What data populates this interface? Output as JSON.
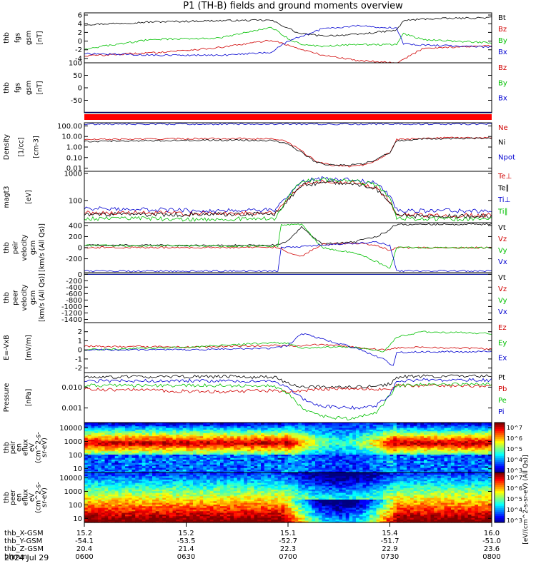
{
  "title": "P1 (TH-B) fields and ground moments overview",
  "date_label": "2024 Jul 29",
  "chart_data": [
    {
      "type": "line",
      "ylabel": [
        "thb",
        "fgs",
        "gsm",
        "[nT]"
      ],
      "yticks": [
        6,
        4,
        2,
        0,
        -2,
        -4
      ],
      "ylim": [
        -5,
        6.5
      ],
      "series": [
        {
          "name": "Bt",
          "color": "#000000",
          "x": [
            0,
            20,
            40,
            55,
            60,
            63,
            70,
            80,
            92,
            94,
            100,
            120
          ],
          "y": [
            3.8,
            4.4,
            4.7,
            4.8,
            3.0,
            1.8,
            1.2,
            1.5,
            2.5,
            4.7,
            5.1,
            5.4
          ]
        },
        {
          "name": "Bz",
          "color": "#d00000",
          "x": [
            0,
            20,
            40,
            55,
            58,
            62,
            70,
            80,
            92,
            94,
            100,
            120
          ],
          "y": [
            -3.4,
            -2.7,
            -1.5,
            0.2,
            -0.4,
            -1.5,
            -3.2,
            -4.4,
            -5.0,
            -4.2,
            -1.6,
            -1.1
          ]
        },
        {
          "name": "By",
          "color": "#00c000",
          "x": [
            0,
            20,
            40,
            55,
            60,
            64,
            70,
            80,
            92,
            94,
            100,
            120
          ],
          "y": [
            -1.8,
            0.4,
            0.7,
            3.2,
            0.6,
            -0.8,
            -1.2,
            -0.8,
            -0.8,
            1.7,
            0.3,
            -0.4
          ]
        },
        {
          "name": "Bx",
          "color": "#0000d0",
          "x": [
            0,
            20,
            40,
            55,
            60,
            64,
            70,
            80,
            92,
            94,
            100,
            120
          ],
          "y": [
            -2.9,
            -3.2,
            -3.3,
            -2.6,
            0.0,
            1.1,
            2.8,
            3.5,
            3.0,
            -0.6,
            -0.9,
            -1.4
          ]
        }
      ]
    },
    {
      "type": "line",
      "ylabel": [
        "thb",
        "fgs",
        "gsm",
        "[nT]"
      ],
      "yticks": [
        100,
        50,
        0,
        -50
      ],
      "ylim": [
        -100,
        100
      ],
      "series": [
        {
          "name": "Bz",
          "color": "#d00000",
          "x": [
            0,
            120
          ],
          "y": [
            -98,
            -98
          ]
        },
        {
          "name": "By",
          "color": "#00c000",
          "x": [
            0,
            120
          ],
          "y": [
            -98,
            -98
          ]
        },
        {
          "name": "Bx",
          "color": "#0000d0",
          "x": [
            0,
            120
          ],
          "y": [
            -98,
            -98
          ]
        }
      ]
    },
    {
      "type": "line",
      "scale": "log",
      "ylabel": [
        "Density",
        "[1/cc]",
        "[cm-3]"
      ],
      "yticks": [
        "100.00",
        "10.00",
        "1.00",
        "0.10",
        "0.01"
      ],
      "ylim": [
        0.005,
        200
      ],
      "series": [
        {
          "name": "Ne",
          "color": "#d00000",
          "x": [
            0,
            10,
            40,
            56,
            60,
            64,
            68,
            72,
            78,
            82,
            85,
            90,
            92,
            100,
            120
          ],
          "y": [
            5.0,
            5.5,
            6.5,
            6.0,
            3.0,
            0.4,
            0.05,
            0.02,
            0.015,
            0.02,
            0.04,
            0.3,
            5.0,
            7.0,
            8.0
          ]
        },
        {
          "name": "Ni",
          "color": "#000000",
          "x": [
            0,
            10,
            40,
            56,
            60,
            64,
            68,
            72,
            78,
            82,
            85,
            90,
            92,
            100,
            120
          ],
          "y": [
            3.5,
            3.8,
            4.5,
            4.0,
            2.0,
            0.3,
            0.04,
            0.02,
            0.02,
            0.025,
            0.05,
            0.3,
            4.0,
            6.0,
            7.0
          ]
        },
        {
          "name": "Npot",
          "color": "#0000d0",
          "x": [
            0,
            120
          ],
          "y": [
            150,
            150
          ]
        }
      ]
    },
    {
      "type": "line",
      "scale": "log",
      "ylabel": [
        "magt3",
        "[eV]"
      ],
      "yticks": [
        "1000",
        "100"
      ],
      "ylim": [
        15,
        1200
      ],
      "series": [
        {
          "name": "Te⊥",
          "color": "#d00000",
          "x": [
            0,
            40,
            56,
            60,
            64,
            70,
            80,
            86,
            90,
            92,
            100,
            120
          ],
          "y": [
            35,
            33,
            36,
            110,
            400,
            520,
            450,
            300,
            90,
            30,
            28,
            28
          ]
        },
        {
          "name": "Te∥",
          "color": "#000000",
          "x": [
            0,
            40,
            56,
            60,
            64,
            70,
            80,
            86,
            90,
            92,
            100,
            120
          ],
          "y": [
            30,
            30,
            32,
            100,
            350,
            470,
            420,
            280,
            80,
            28,
            26,
            26
          ]
        },
        {
          "name": "Ti⊥",
          "color": "#0000d0",
          "x": [
            0,
            40,
            56,
            60,
            64,
            70,
            80,
            86,
            90,
            92,
            100,
            120
          ],
          "y": [
            50,
            42,
            45,
            160,
            520,
            640,
            560,
            430,
            150,
            45,
            42,
            40
          ]
        },
        {
          "name": "Ti∥",
          "color": "#00c000",
          "x": [
            0,
            40,
            56,
            60,
            64,
            70,
            80,
            86,
            90,
            92,
            100,
            120
          ],
          "y": [
            22,
            20,
            22,
            130,
            500,
            600,
            520,
            380,
            120,
            22,
            21,
            20
          ]
        }
      ]
    },
    {
      "type": "line",
      "ylabel": [
        "thb",
        "peir",
        "velocity",
        "gsm",
        "[km/s (All Qs)]"
      ],
      "yticks": [
        400,
        200,
        0,
        -200
      ],
      "ylim": [
        -450,
        450
      ],
      "series": [
        {
          "name": "Vt",
          "color": "#000000",
          "x": [
            0,
            40,
            57,
            60,
            64,
            70,
            80,
            86,
            90,
            91,
            92,
            100,
            120
          ],
          "y": [
            45,
            40,
            50,
            120,
            380,
            60,
            110,
            200,
            320,
            400,
            420,
            420,
            420
          ]
        },
        {
          "name": "Vz",
          "color": "#d00000",
          "x": [
            0,
            40,
            57,
            60,
            64,
            70,
            80,
            86,
            90,
            92,
            100,
            120
          ],
          "y": [
            5,
            0,
            10,
            -80,
            -150,
            60,
            80,
            50,
            -50,
            0,
            0,
            0
          ]
        },
        {
          "name": "Vy",
          "color": "#00c000",
          "x": [
            0,
            40,
            57,
            58,
            64,
            70,
            80,
            86,
            90,
            92,
            100,
            120
          ],
          "y": [
            40,
            30,
            30,
            420,
            420,
            0,
            -100,
            -250,
            -380,
            0,
            0,
            0
          ]
        },
        {
          "name": "Vx",
          "color": "#0000d0",
          "x": [
            0,
            40,
            57,
            58,
            64,
            70,
            80,
            86,
            90,
            92,
            100,
            120
          ],
          "y": [
            -420,
            -420,
            -420,
            0,
            20,
            50,
            80,
            100,
            40,
            -420,
            -420,
            -420
          ]
        }
      ]
    },
    {
      "type": "line",
      "ylabel": [
        "thb",
        "peer",
        "velocity",
        "gsm",
        "[km/s (All Qs)]"
      ],
      "yticks": [
        0,
        -200,
        -400,
        -600,
        -800,
        -1000,
        -1200,
        -1400
      ],
      "ylim": [
        -1500,
        50
      ],
      "series": [
        {
          "name": "Vt",
          "color": "#000000",
          "x": [
            0,
            120
          ],
          "y": [
            0,
            0
          ]
        },
        {
          "name": "Vz",
          "color": "#d00000",
          "x": [
            0,
            120
          ],
          "y": [
            0,
            0
          ]
        },
        {
          "name": "Vy",
          "color": "#00c000",
          "x": [
            0,
            120
          ],
          "y": [
            0,
            0
          ]
        },
        {
          "name": "Vx",
          "color": "#0000d0",
          "x": [
            0,
            120
          ],
          "y": [
            0,
            0
          ]
        }
      ]
    },
    {
      "type": "line",
      "ylabel": [
        "E=-VxB",
        "[mV/m]"
      ],
      "yticks": [
        2,
        1,
        0,
        -1,
        -2
      ],
      "ylim": [
        -2.5,
        3.0
      ],
      "series": [
        {
          "name": "Ez",
          "color": "#d00000",
          "x": [
            0,
            30,
            56,
            62,
            70,
            80,
            88,
            92,
            100,
            120
          ],
          "y": [
            0.4,
            0.3,
            0.5,
            0.4,
            0.6,
            0.3,
            0.0,
            0.2,
            0.3,
            0.1
          ]
        },
        {
          "name": "Ey",
          "color": "#00c000",
          "x": [
            0,
            30,
            56,
            60,
            64,
            70,
            80,
            88,
            92,
            100,
            120
          ],
          "y": [
            0.0,
            0.3,
            0.8,
            0.7,
            0.2,
            0.3,
            0.3,
            -0.2,
            1.4,
            2.0,
            1.8
          ]
        },
        {
          "name": "Ex",
          "color": "#0000d0",
          "x": [
            0,
            30,
            56,
            60,
            64,
            70,
            80,
            88,
            91,
            92,
            100,
            120
          ],
          "y": [
            0.0,
            0.0,
            0.2,
            0.5,
            1.8,
            1.2,
            0.2,
            -1.0,
            -1.8,
            -0.3,
            -0.2,
            -0.2
          ]
        }
      ]
    },
    {
      "type": "line",
      "scale": "log",
      "ylabel": [
        "Pressure",
        "[nPa]"
      ],
      "yticks": [
        "0.010",
        "0.001"
      ],
      "ylim": [
        0.0002,
        0.05
      ],
      "series": [
        {
          "name": "Pt",
          "color": "#000000",
          "x": [
            0,
            40,
            56,
            60,
            64,
            70,
            80,
            86,
            90,
            92,
            100,
            120
          ],
          "y": [
            0.03,
            0.032,
            0.03,
            0.015,
            0.011,
            0.01,
            0.01,
            0.011,
            0.014,
            0.03,
            0.034,
            0.034
          ]
        },
        {
          "name": "Pb",
          "color": "#d00000",
          "x": [
            0,
            40,
            56,
            60,
            64,
            70,
            80,
            86,
            90,
            92,
            100,
            120
          ],
          "y": [
            0.008,
            0.006,
            0.007,
            0.006,
            0.007,
            0.008,
            0.009,
            0.008,
            0.008,
            0.012,
            0.012,
            0.011
          ]
        },
        {
          "name": "Pe",
          "color": "#00c000",
          "x": [
            0,
            40,
            56,
            60,
            64,
            70,
            78,
            86,
            90,
            92,
            100,
            120
          ],
          "y": [
            0.012,
            0.012,
            0.011,
            0.005,
            0.001,
            0.0004,
            0.0003,
            0.0006,
            0.004,
            0.012,
            0.013,
            0.014
          ]
        },
        {
          "name": "Pi",
          "color": "#0000d0",
          "x": [
            0,
            40,
            56,
            60,
            64,
            70,
            80,
            86,
            90,
            92,
            100,
            120
          ],
          "y": [
            0.02,
            0.02,
            0.018,
            0.009,
            0.003,
            0.0012,
            0.001,
            0.0013,
            0.004,
            0.02,
            0.022,
            0.022
          ]
        }
      ]
    },
    {
      "type": "heatmap",
      "ylabel": [
        "thb",
        "peir",
        "en",
        "eflux",
        "eV",
        "(cm^2-s-",
        "sr-eV)"
      ],
      "yticks": [
        "10000",
        "1000",
        "100",
        "10"
      ],
      "ylim": [
        5,
        25000
      ],
      "colorbar_ticks": [
        "10^7",
        "10^6",
        "10^5",
        "10^4",
        "10^3"
      ]
    },
    {
      "type": "heatmap",
      "ylabel": [
        "thb",
        "peer",
        "en",
        "eflux",
        "eV",
        "(cm^2-s-",
        "sr-eV)"
      ],
      "yticks": [
        "10000",
        "1000",
        "100",
        "10"
      ],
      "ylim": [
        5,
        25000
      ],
      "colorbar_ticks": [
        "10^7",
        "10^6",
        "10^5",
        "10^4",
        "10^3"
      ],
      "colorbar_label": "[eV/(cm^2-s-sr-eV) (All Qs)]"
    }
  ],
  "x_axis": {
    "range_minutes": [
      0,
      120
    ],
    "tick_minutes": [
      0,
      30,
      60,
      90,
      120
    ],
    "rows": [
      {
        "label": "thb_X-GSM",
        "values": [
          "15.2",
          "15.2",
          "15.1",
          "15.4",
          "16.0"
        ]
      },
      {
        "label": "thb_Y-GSM",
        "values": [
          "-54.1",
          "-53.5",
          "-52.7",
          "-51.7",
          "-51.0"
        ]
      },
      {
        "label": "thb_Z-GSM",
        "values": [
          "20.4",
          "21.4",
          "22.3",
          "22.9",
          "23.6"
        ]
      },
      {
        "label": "hhmm",
        "values": [
          "0600",
          "0630",
          "0700",
          "0730",
          "0800"
        ]
      }
    ]
  }
}
